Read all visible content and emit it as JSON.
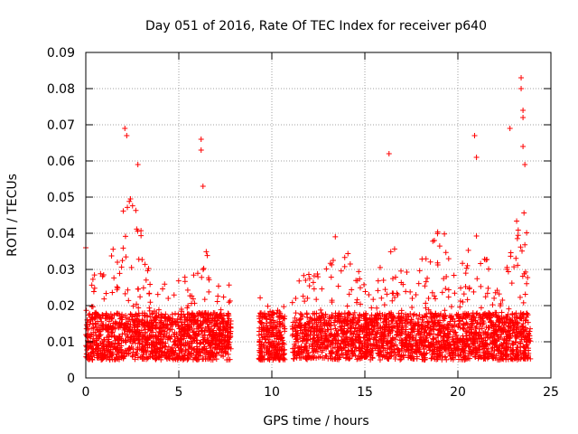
{
  "chart_data": {
    "type": "scatter",
    "title": "Day 051 of 2016, Rate Of TEC Index for receiver p640",
    "xlabel": "GPS time / hours",
    "ylabel": "ROTI / TECUs",
    "xlim": [
      0,
      25
    ],
    "ylim": [
      0,
      0.09
    ],
    "x_ticks": [
      0,
      5,
      10,
      15,
      20,
      25
    ],
    "x_tick_labels": [
      "0",
      "5",
      "10",
      "15",
      "20",
      "25"
    ],
    "y_ticks": [
      0,
      0.01,
      0.02,
      0.03,
      0.04,
      0.05,
      0.06,
      0.07,
      0.08,
      0.09
    ],
    "y_tick_labels": [
      "0",
      "0.01",
      "0.02",
      "0.03",
      "0.04",
      "0.05",
      "0.06",
      "0.07",
      "0.08",
      "0.09"
    ],
    "grid": true,
    "marker": "+",
    "marker_color": "#ff0000",
    "series": [
      {
        "name": "ROTI",
        "data_gaps_hours": [
          [
            7.8,
            9.3
          ],
          [
            10.7,
            11.1
          ]
        ],
        "notable_points": [
          {
            "x": 0.0,
            "y": 0.036
          },
          {
            "x": 2.1,
            "y": 0.069
          },
          {
            "x": 2.2,
            "y": 0.067
          },
          {
            "x": 2.8,
            "y": 0.059
          },
          {
            "x": 6.2,
            "y": 0.066
          },
          {
            "x": 6.2,
            "y": 0.063
          },
          {
            "x": 6.3,
            "y": 0.053
          },
          {
            "x": 16.3,
            "y": 0.062
          },
          {
            "x": 20.9,
            "y": 0.067
          },
          {
            "x": 21.0,
            "y": 0.061
          },
          {
            "x": 22.8,
            "y": 0.069
          },
          {
            "x": 23.4,
            "y": 0.083
          },
          {
            "x": 23.4,
            "y": 0.08
          },
          {
            "x": 23.5,
            "y": 0.074
          },
          {
            "x": 23.5,
            "y": 0.072
          },
          {
            "x": 23.5,
            "y": 0.064
          },
          {
            "x": 23.6,
            "y": 0.059
          }
        ],
        "typical_range": [
          0.005,
          0.03
        ],
        "x_extent": [
          0.0,
          23.9
        ]
      }
    ]
  }
}
